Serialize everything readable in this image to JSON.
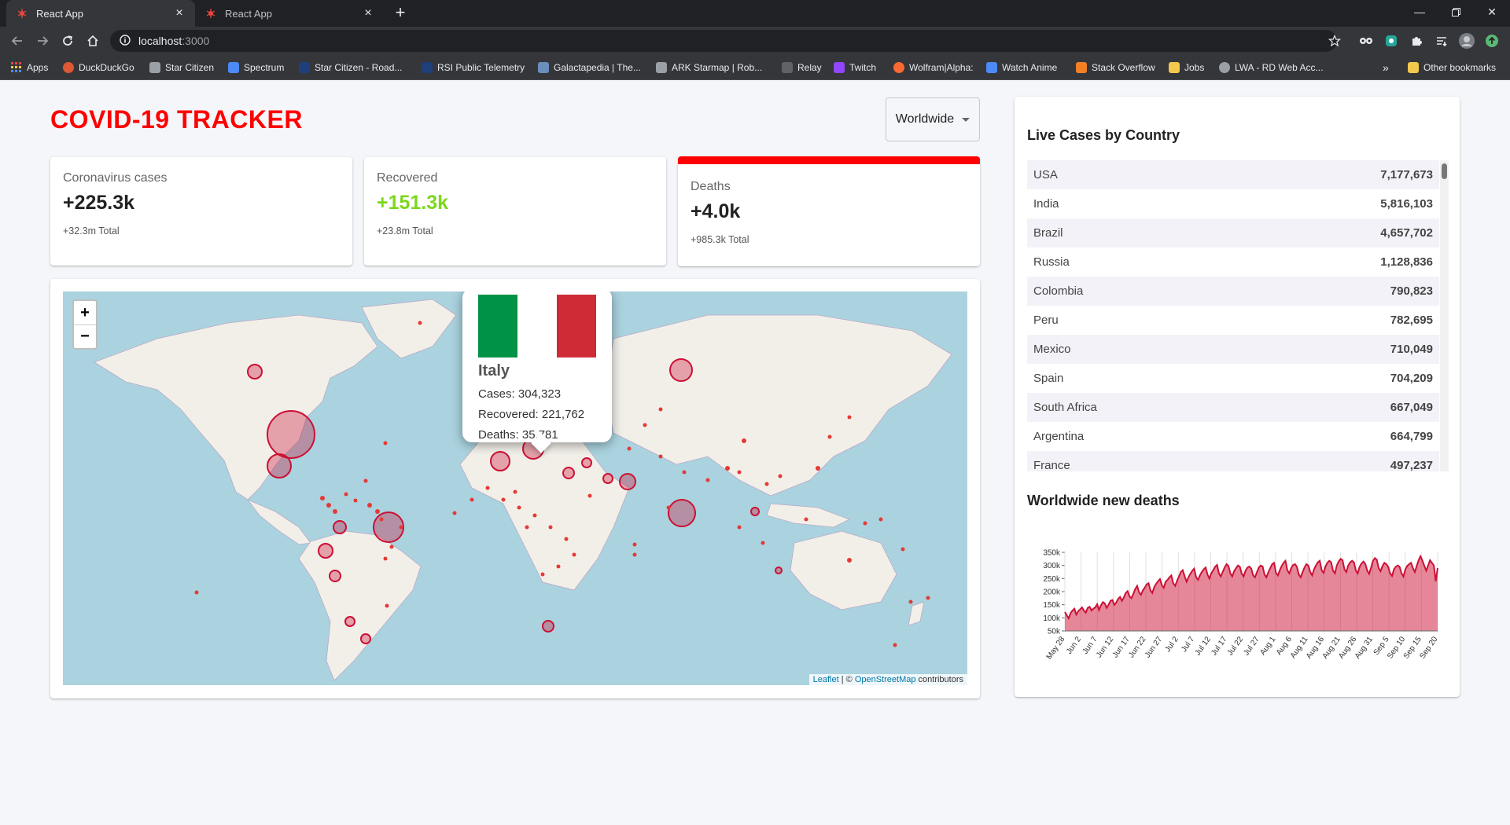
{
  "browser": {
    "tabs": [
      {
        "title": "React App",
        "active": true
      },
      {
        "title": "React App",
        "active": false
      }
    ],
    "url": {
      "host": "localhost",
      "port": ":3000"
    },
    "bookmarks": [
      {
        "label": "Apps",
        "color": "#e8453c"
      },
      {
        "label": "DuckDuckGo",
        "color": "#de5833"
      },
      {
        "label": "Star Citizen",
        "color": "#9aa0a6"
      },
      {
        "label": "Spectrum",
        "color": "#4c8bf5"
      },
      {
        "label": "Star Citizen - Road...",
        "color": "#1f3f7a"
      },
      {
        "label": "RSI Public Telemetry",
        "color": "#1f3f7a"
      },
      {
        "label": "Galactapedia | The...",
        "color": "#6c8ebf"
      },
      {
        "label": "ARK Starmap | Rob...",
        "color": "#9aa0a6"
      },
      {
        "label": "Relay",
        "color": "#5f6368"
      },
      {
        "label": "Twitch",
        "color": "#9146ff"
      },
      {
        "label": "Wolfram|Alpha:",
        "color": "#f96932"
      },
      {
        "label": "Watch Anime",
        "color": "#4c8bf5"
      },
      {
        "label": "Stack Overflow",
        "color": "#f48024"
      },
      {
        "label": "Jobs",
        "color": "#f2c94c"
      },
      {
        "label": "LWA - RD Web Acc...",
        "color": "#9aa0a6"
      }
    ],
    "bookmarks_more": "»",
    "other_bookmarks": "Other bookmarks"
  },
  "app": {
    "title": "COVID-19 TRACKER",
    "country_select": "Worldwide"
  },
  "infoboxes": [
    {
      "title": "Coronavirus cases",
      "cases": "+225.3k",
      "total": "+32.3m Total"
    },
    {
      "title": "Recovered",
      "cases": "+151.3k",
      "total": "+23.8m Total"
    },
    {
      "title": "Deaths",
      "cases": "+4.0k",
      "total": "+985.3k Total"
    }
  ],
  "map": {
    "zoom_in": "+",
    "zoom_out": "−",
    "attribution": {
      "leaflet": "Leaflet",
      "sep": " | © ",
      "osm": "OpenStreetMap",
      "rest": " contributors"
    },
    "popup": {
      "name": "Italy",
      "cases": "Cases: 304,323",
      "recovered": "Recovered: 221,762",
      "deaths": "Deaths: 35,781"
    }
  },
  "sidebar": {
    "table_title": "Live Cases by Country",
    "countries": [
      {
        "country": "USA",
        "cases": "7,177,673"
      },
      {
        "country": "India",
        "cases": "5,816,103"
      },
      {
        "country": "Brazil",
        "cases": "4,657,702"
      },
      {
        "country": "Russia",
        "cases": "1,128,836"
      },
      {
        "country": "Colombia",
        "cases": "790,823"
      },
      {
        "country": "Peru",
        "cases": "782,695"
      },
      {
        "country": "Mexico",
        "cases": "710,049"
      },
      {
        "country": "Spain",
        "cases": "704,209"
      },
      {
        "country": "South Africa",
        "cases": "667,049"
      },
      {
        "country": "Argentina",
        "cases": "664,799"
      },
      {
        "country": "France",
        "cases": "497,237"
      }
    ],
    "chart_title": "Worldwide new deaths"
  },
  "chart_data": {
    "type": "area",
    "title": "Worldwide new deaths",
    "color": "#cc1034",
    "fill": "rgba(204,16,52,0.5)",
    "yticks": [
      "350k",
      "300k",
      "250k",
      "200k",
      "150k",
      "100k",
      "50k"
    ],
    "ylim": [
      50000,
      350000
    ],
    "xticks": [
      "May 28",
      "Jun 2",
      "Jun 7",
      "Jun 12",
      "Jun 17",
      "Jun 22",
      "Jun 27",
      "Jul 2",
      "Jul 7",
      "Jul 12",
      "Jul 17",
      "Jul 22",
      "Jul 27",
      "Aug 1",
      "Aug 6",
      "Aug 11",
      "Aug 16",
      "Aug 21",
      "Aug 26",
      "Aug 31",
      "Sep 5",
      "Sep 10",
      "Sep 15",
      "Sep 20"
    ],
    "values": [
      122000,
      110000,
      98000,
      118000,
      128000,
      135000,
      112000,
      125000,
      132000,
      140000,
      128000,
      120000,
      138000,
      142000,
      128000,
      135000,
      140000,
      152000,
      130000,
      148000,
      160000,
      155000,
      138000,
      150000,
      165000,
      168000,
      150000,
      158000,
      172000,
      180000,
      165000,
      178000,
      195000,
      202000,
      182000,
      175000,
      192000,
      210000,
      222000,
      198000,
      188000,
      205000,
      215000,
      228000,
      232000,
      205000,
      195000,
      218000,
      230000,
      240000,
      248000,
      225000,
      215000,
      238000,
      245000,
      255000,
      262000,
      232000,
      222000,
      242000,
      258000,
      275000,
      282000,
      258000,
      238000,
      255000,
      268000,
      280000,
      288000,
      255000,
      245000,
      262000,
      275000,
      285000,
      292000,
      265000,
      250000,
      270000,
      282000,
      295000,
      302000,
      270000,
      258000,
      275000,
      292000,
      305000,
      298000,
      270000,
      258000,
      278000,
      290000,
      300000,
      295000,
      268000,
      258000,
      280000,
      292000,
      296000,
      288000,
      262000,
      255000,
      275000,
      292000,
      300000,
      296000,
      265000,
      255000,
      275000,
      290000,
      305000,
      310000,
      272000,
      262000,
      282000,
      298000,
      310000,
      318000,
      282000,
      270000,
      290000,
      302000,
      305000,
      295000,
      265000,
      255000,
      275000,
      292000,
      305000,
      300000,
      275000,
      262000,
      285000,
      300000,
      312000,
      318000,
      282000,
      272000,
      295000,
      310000,
      318000,
      312000,
      280000,
      270000,
      300000,
      315000,
      325000,
      320000,
      285000,
      275000,
      300000,
      312000,
      318000,
      312000,
      280000,
      270000,
      295000,
      308000,
      315000,
      305000,
      280000,
      268000,
      292000,
      318000,
      328000,
      322000,
      290000,
      278000,
      298000,
      310000,
      305000,
      295000,
      270000,
      260000,
      285000,
      295000,
      300000,
      295000,
      270000,
      258000,
      285000,
      298000,
      305000,
      310000,
      290000,
      275000,
      298000,
      320000,
      335000,
      318000,
      298000,
      280000,
      300000,
      320000,
      310000,
      300000,
      240000,
      290000
    ]
  }
}
